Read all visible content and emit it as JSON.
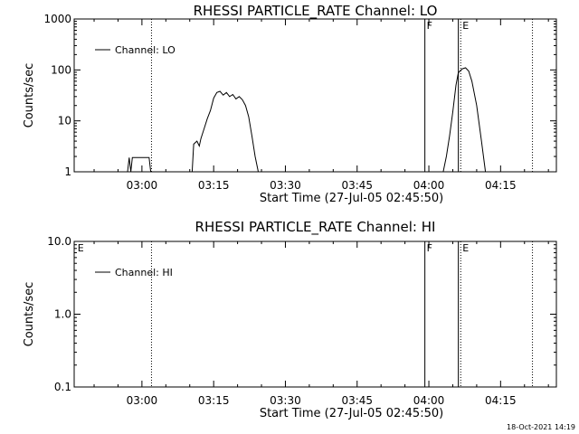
{
  "chart_data": [
    {
      "type": "line",
      "title": "RHESSI PARTICLE_RATE Channel: LO",
      "xlabel": "Start Time (27-Jul-05 02:45:50)",
      "ylabel": "Counts/sec",
      "yscale": "log",
      "ylim": [
        1,
        1000
      ],
      "xlim": [
        "02:45:50",
        "04:26:40"
      ],
      "x_ticks": [
        "03:00",
        "03:15",
        "03:30",
        "03:45",
        "04:00",
        "04:15"
      ],
      "y_ticks": [
        "1",
        "10",
        "100",
        "1000"
      ],
      "legend": {
        "position": "top-left",
        "entries": [
          "Channel: LO"
        ]
      },
      "grid": false,
      "series": [
        {
          "name": "Channel: LO",
          "points": [
            [
              "02:57:00",
              1
            ],
            [
              "02:57:20",
              1.9
            ],
            [
              "02:57:40",
              1
            ],
            [
              "02:58:00",
              1.9
            ],
            [
              "03:01:00",
              1.9
            ],
            [
              "03:01:30",
              1.9
            ],
            [
              "03:01:50",
              1
            ],
            [
              "03:10:30",
              1
            ],
            [
              "03:10:50",
              3.5
            ],
            [
              "03:11:30",
              4
            ],
            [
              "03:12:00",
              3.2
            ],
            [
              "03:12:20",
              4.5
            ],
            [
              "03:13:00",
              7
            ],
            [
              "03:13:40",
              11
            ],
            [
              "03:14:20",
              16
            ],
            [
              "03:15:00",
              28
            ],
            [
              "03:15:40",
              36
            ],
            [
              "03:16:20",
              38
            ],
            [
              "03:17:00",
              32
            ],
            [
              "03:17:40",
              36
            ],
            [
              "03:18:20",
              30
            ],
            [
              "03:19:00",
              33
            ],
            [
              "03:19:40",
              27
            ],
            [
              "03:20:20",
              30
            ],
            [
              "03:21:00",
              26
            ],
            [
              "03:21:40",
              20
            ],
            [
              "03:22:20",
              12
            ],
            [
              "03:23:00",
              5
            ],
            [
              "03:23:40",
              2
            ],
            [
              "03:24:20",
              1
            ],
            [
              "04:03:00",
              1
            ],
            [
              "04:03:40",
              2
            ],
            [
              "04:04:20",
              5
            ],
            [
              "04:05:00",
              15
            ],
            [
              "04:05:40",
              50
            ],
            [
              "04:06:10",
              88
            ],
            [
              "04:06:30",
              95
            ],
            [
              "04:07:00",
              105
            ],
            [
              "04:07:40",
              110
            ],
            [
              "04:08:20",
              95
            ],
            [
              "04:09:00",
              60
            ],
            [
              "04:10:00",
              20
            ],
            [
              "04:11:00",
              4
            ],
            [
              "04:11:50",
              1
            ]
          ]
        }
      ],
      "annotations": [
        {
          "text": "",
          "x": "03:02:00",
          "style": "dotted"
        },
        {
          "text": "F",
          "x": "03:59:10",
          "style": "solid"
        },
        {
          "text": "",
          "x": "04:06:10",
          "style": "solid"
        },
        {
          "text": "E",
          "x": "04:06:40",
          "style": "dotted"
        },
        {
          "text": "",
          "x": "04:21:40",
          "style": "dotted"
        }
      ]
    },
    {
      "type": "line",
      "title": "RHESSI PARTICLE_RATE Channel: HI",
      "xlabel": "Start Time (27-Jul-05 02:45:50)",
      "ylabel": "Counts/sec",
      "yscale": "log",
      "ylim": [
        0.1,
        10
      ],
      "xlim": [
        "02:45:50",
        "04:26:40"
      ],
      "x_ticks": [
        "03:00",
        "03:15",
        "03:30",
        "03:45",
        "04:00",
        "04:15"
      ],
      "y_ticks": [
        "0.1",
        "1.0",
        "10.0"
      ],
      "legend": {
        "position": "top-left",
        "entries": [
          "Channel: HI"
        ]
      },
      "grid": false,
      "series": [
        {
          "name": "Channel: HI",
          "points": []
        }
      ],
      "annotations": [
        {
          "text": "E",
          "x": "02:46:10",
          "style": "none"
        },
        {
          "text": "",
          "x": "03:02:00",
          "style": "dotted"
        },
        {
          "text": "F",
          "x": "03:59:10",
          "style": "solid"
        },
        {
          "text": "",
          "x": "04:06:10",
          "style": "solid"
        },
        {
          "text": "E",
          "x": "04:06:40",
          "style": "dotted"
        },
        {
          "text": "",
          "x": "04:21:40",
          "style": "dotted"
        }
      ]
    }
  ],
  "footer": {
    "timestamp": "18-Oct-2021 14:19"
  }
}
